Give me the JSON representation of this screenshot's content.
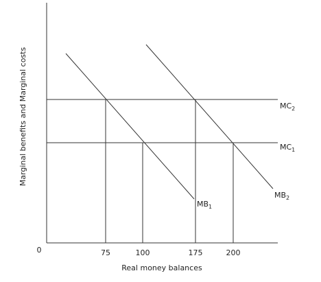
{
  "axes": {
    "origin": "0",
    "x_label": "Real money balances",
    "y_label": "Marginal benefits and Marginal costs",
    "x_ticks": [
      "75",
      "100",
      "175",
      "200"
    ]
  },
  "curves": [
    {
      "text": "MC",
      "sub": "2"
    },
    {
      "text": "MC",
      "sub": "1"
    },
    {
      "text": "MB",
      "sub": "2"
    },
    {
      "text": "MB",
      "sub": "1"
    }
  ]
}
